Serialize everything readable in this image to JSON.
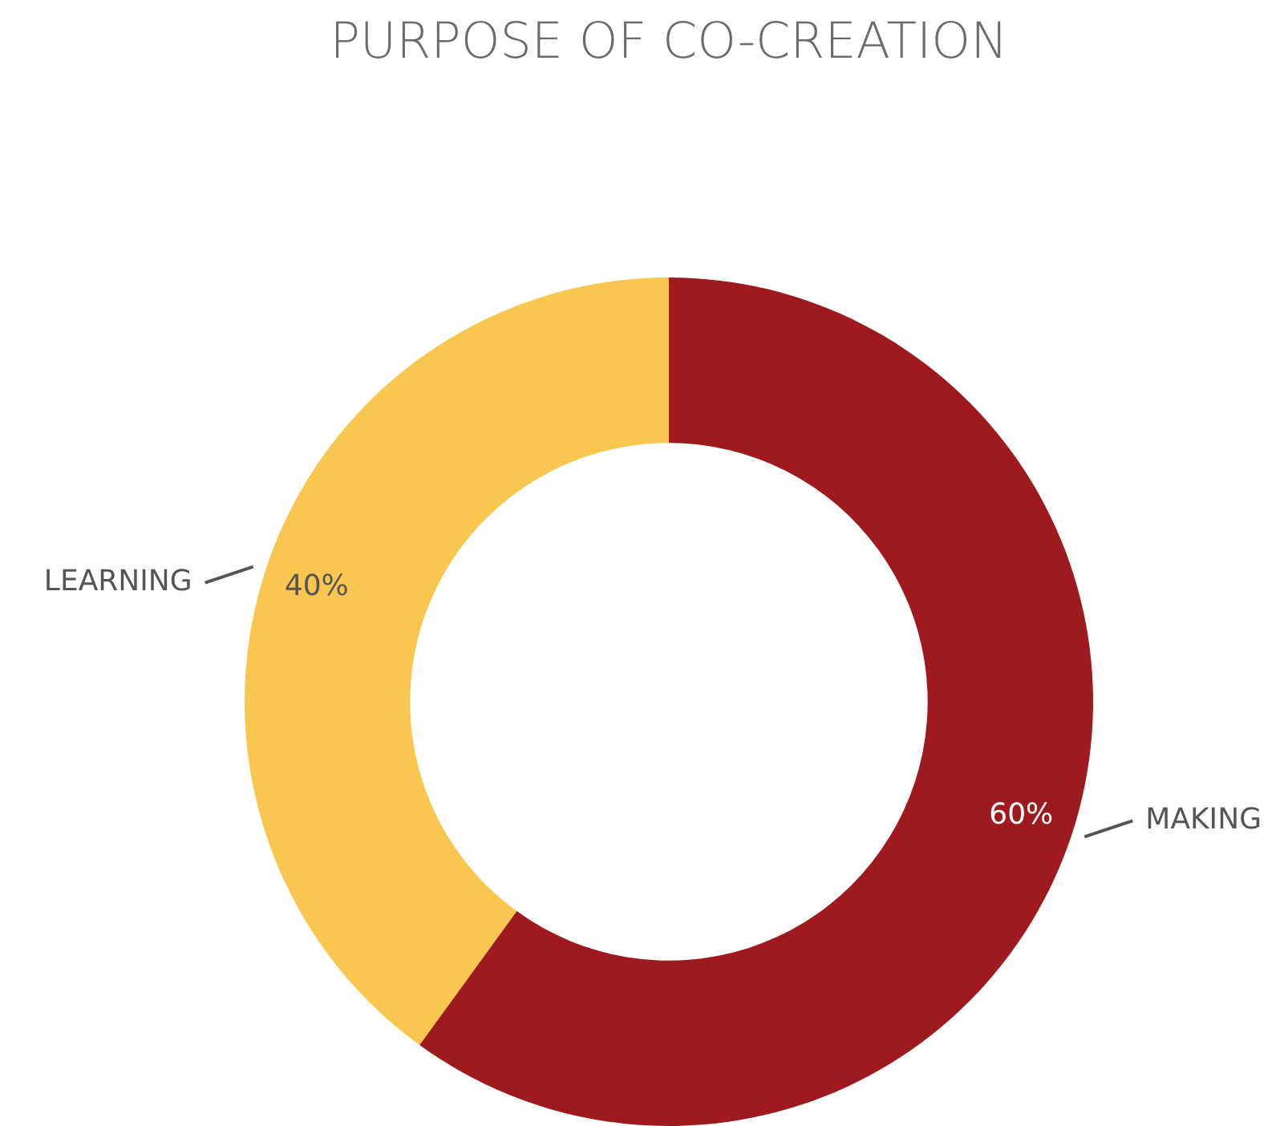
{
  "chart_data": {
    "type": "donut",
    "title": "PURPOSE OF CO-CREATION",
    "categories": [
      "MAKING",
      "LEARNING"
    ],
    "values": [
      60,
      40
    ],
    "colors": [
      "#9e1a1e",
      "#f9c74f"
    ],
    "value_labels": [
      "60%",
      "40%"
    ],
    "legend": false
  }
}
